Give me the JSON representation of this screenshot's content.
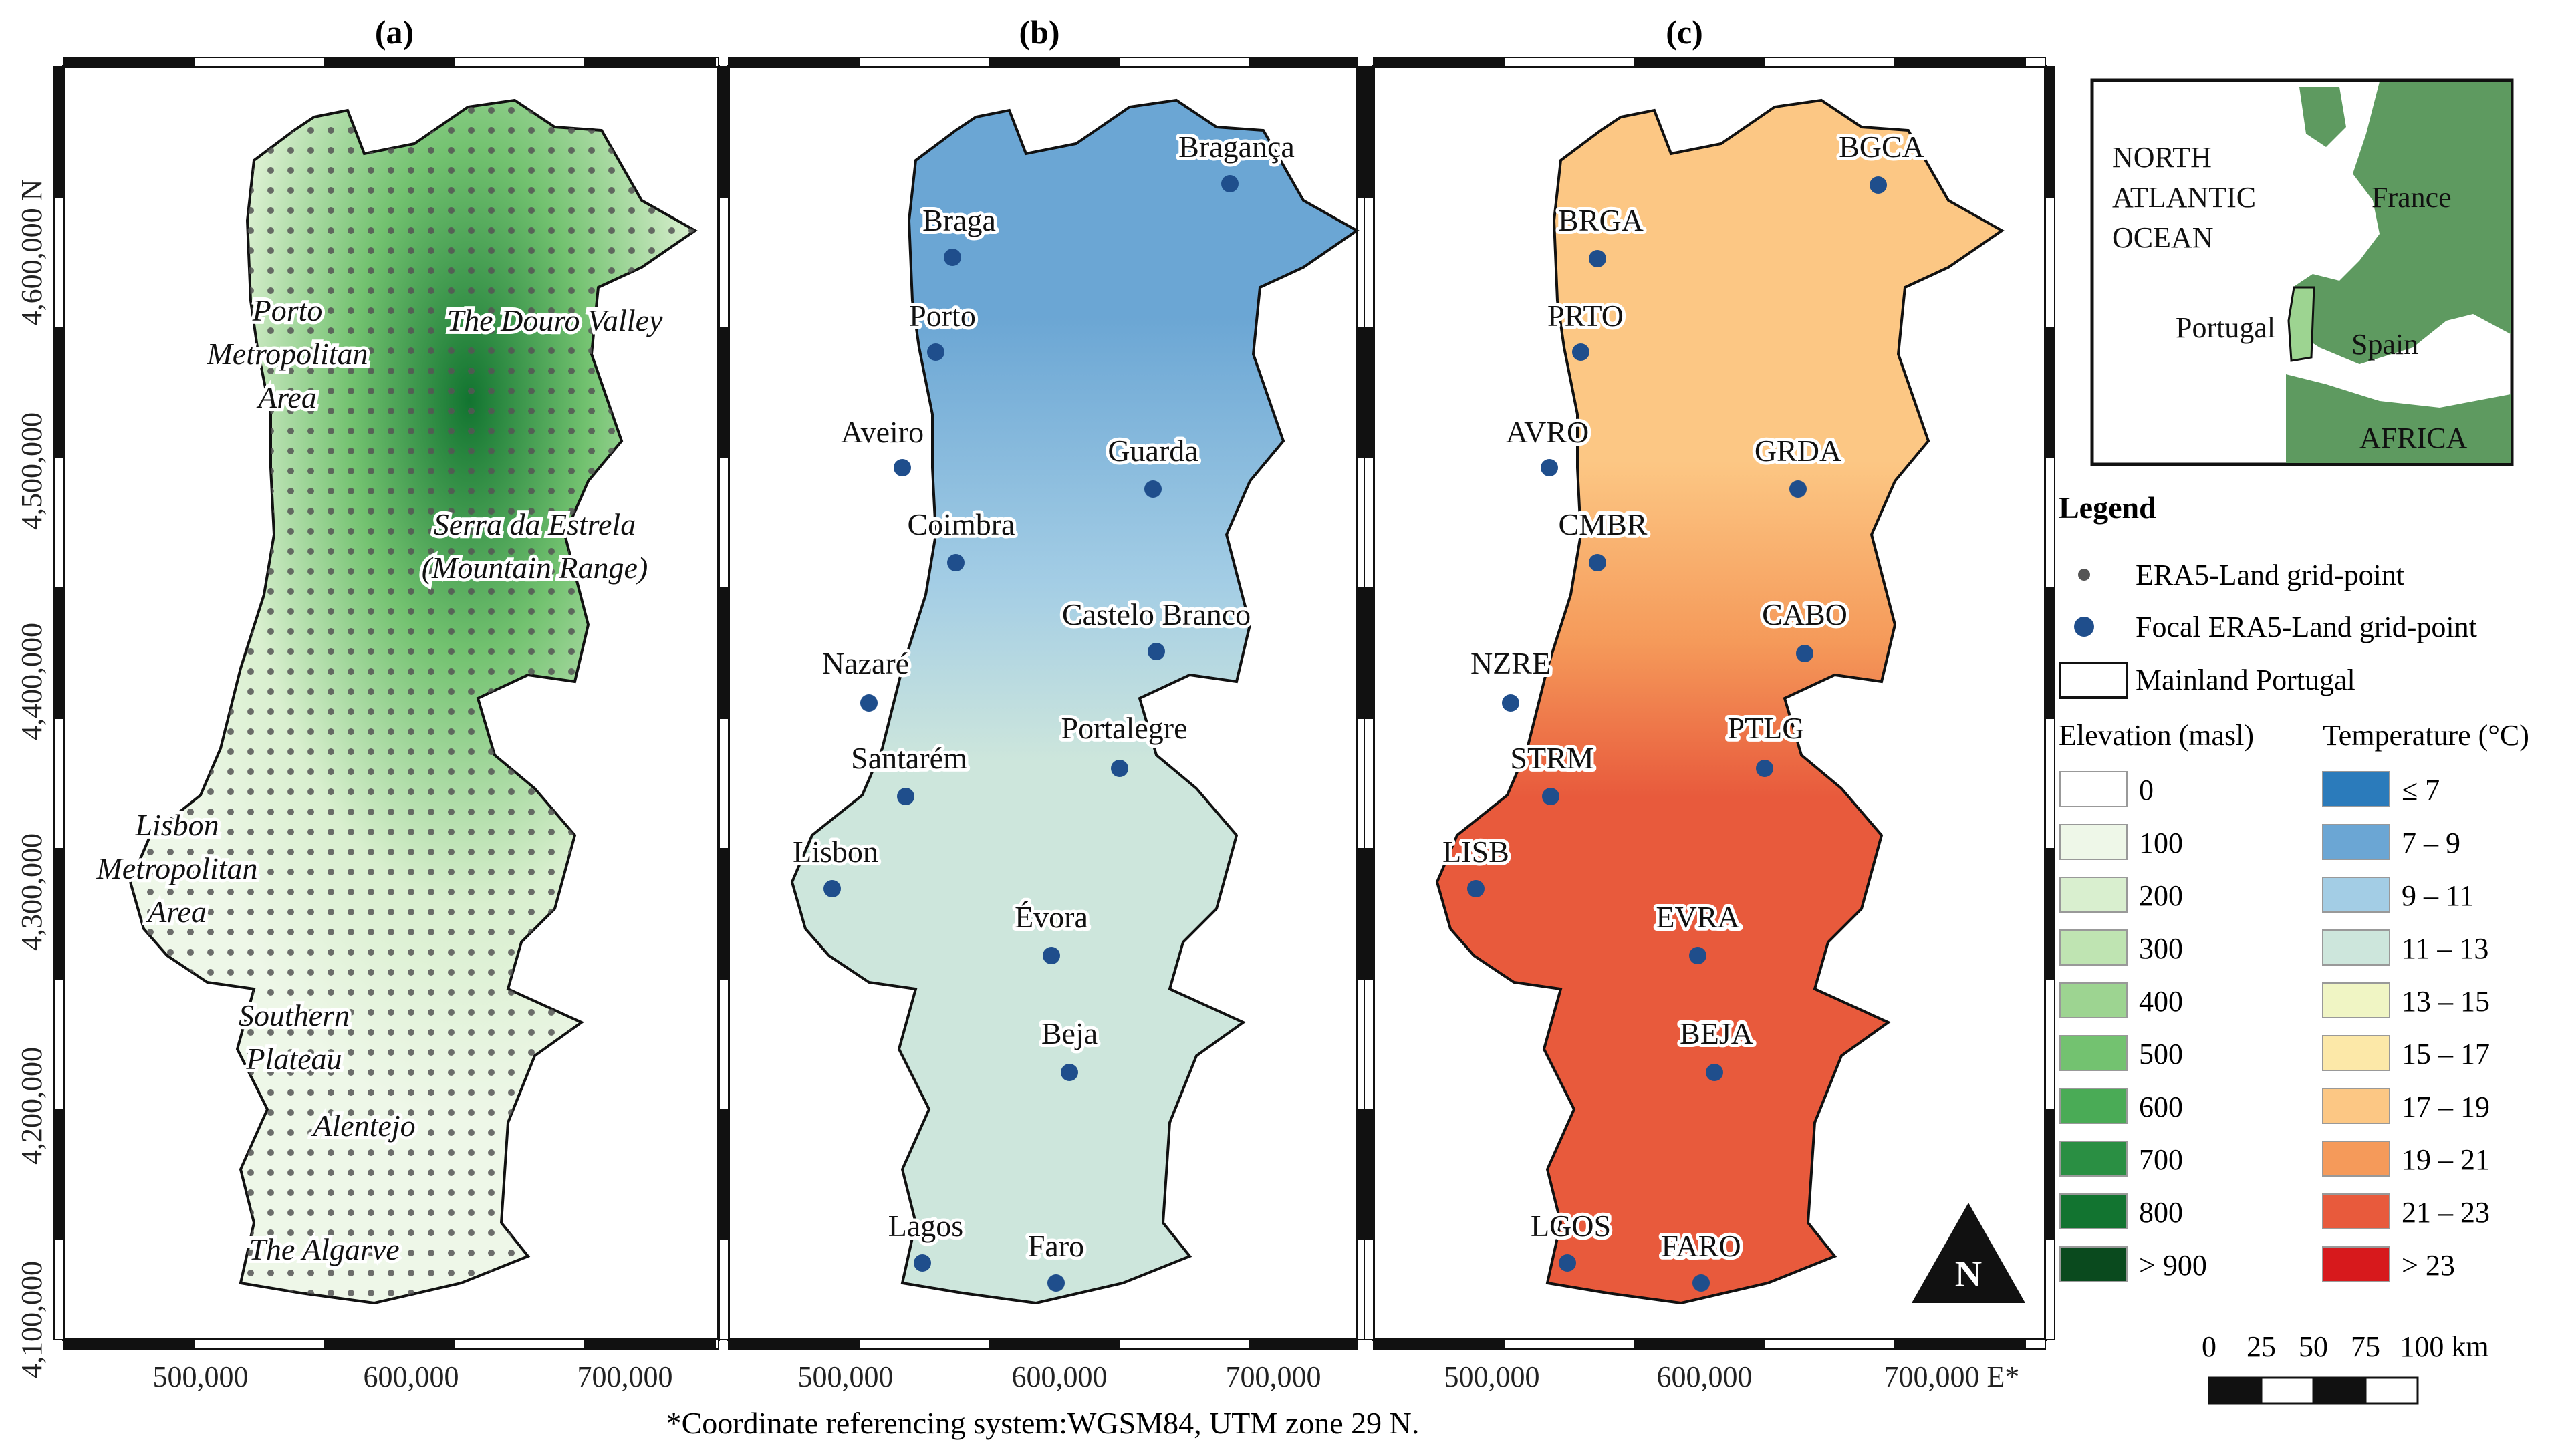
{
  "panels": [
    {
      "label": "(a)"
    },
    {
      "label": "(b)"
    },
    {
      "label": "(c)"
    }
  ],
  "y_ticks": [
    "4,600,000 N",
    "4,500,000",
    "4,400,000",
    "4,300,000",
    "4,200,000",
    "4,100,000"
  ],
  "x_ticks": [
    "500,000",
    "600,000",
    "700,000"
  ],
  "x_ticks_last": "700,000 E*",
  "regions_a": [
    "Porto",
    "Metropolitan",
    "Area",
    "The Douro Valley",
    "Serra da Estrela",
    "(Mountain Range)",
    "Lisbon",
    "Metropolitan",
    "Area",
    "Southern",
    "Plateau",
    "Alentejo",
    "The Algarve"
  ],
  "cities_b": [
    "Bragança",
    "Braga",
    "Porto",
    "Aveiro",
    "Guarda",
    "Coimbra",
    "Castelo Branco",
    "Nazaré",
    "Portalegre",
    "Santarém",
    "Lisbon",
    "Évora",
    "Beja",
    "Lagos",
    "Faro"
  ],
  "cities_c": [
    "BGCA",
    "BRGA",
    "PRTO",
    "AVRO",
    "GRDA",
    "CMBR",
    "CABO",
    "NZRE",
    "PTLG",
    "STRM",
    "LISB",
    "EVRA",
    "BEJA",
    "LGOS",
    "FARO"
  ],
  "north_arrow": "N",
  "inset": {
    "ocean": [
      "NORTH",
      "ATLANTIC",
      "OCEAN"
    ],
    "france": "France",
    "portugal": "Portugal",
    "spain": "Spain",
    "africa": "AFRICA"
  },
  "legend": {
    "title": "Legend",
    "grid_point": "ERA5-Land grid-point",
    "focal_point": "Focal ERA5-Land grid-point",
    "mainland": "Mainland Portugal",
    "elevation_title": "Elevation (masl)",
    "temperature_title": "Temperature (°C)",
    "elevation_classes": [
      {
        "label": "0",
        "color": "#ffffff"
      },
      {
        "label": "100",
        "color": "#eef7e8"
      },
      {
        "label": "200",
        "color": "#d9efcf"
      },
      {
        "label": "300",
        "color": "#bfe4b2"
      },
      {
        "label": "400",
        "color": "#9dd491"
      },
      {
        "label": "500",
        "color": "#73c270"
      },
      {
        "label": "600",
        "color": "#4aab56"
      },
      {
        "label": "700",
        "color": "#2a8f43"
      },
      {
        "label": "800",
        "color": "#127430"
      },
      {
        "label": "> 900",
        "color": "#0a4a1e"
      }
    ],
    "temperature_classes": [
      {
        "label": "≤ 7",
        "color": "#2b7bbb"
      },
      {
        "label": "7 – 9",
        "color": "#6ba6d4"
      },
      {
        "label": "9 – 11",
        "color": "#a3cde5"
      },
      {
        "label": "11 – 13",
        "color": "#cde6dc"
      },
      {
        "label": "13 – 15",
        "color": "#f0f5c4"
      },
      {
        "label": "15 – 17",
        "color": "#fce8a8"
      },
      {
        "label": "17 – 19",
        "color": "#fcc784"
      },
      {
        "label": "19 – 21",
        "color": "#f59a5a"
      },
      {
        "label": "21 – 23",
        "color": "#e85a3c"
      },
      {
        "label": "> 23",
        "color": "#d7191c"
      }
    ]
  },
  "scalebar": {
    "labels": [
      "0",
      "25",
      "50",
      "75",
      "100 km"
    ]
  },
  "footnote": "*Coordinate referencing system:WGSM84, UTM zone 29 N.",
  "colors": {
    "grid_point": "#555555",
    "focal_point": "#1f4e8c",
    "inset_land": "#5e9a60",
    "inset_sea": "#ffffff"
  }
}
